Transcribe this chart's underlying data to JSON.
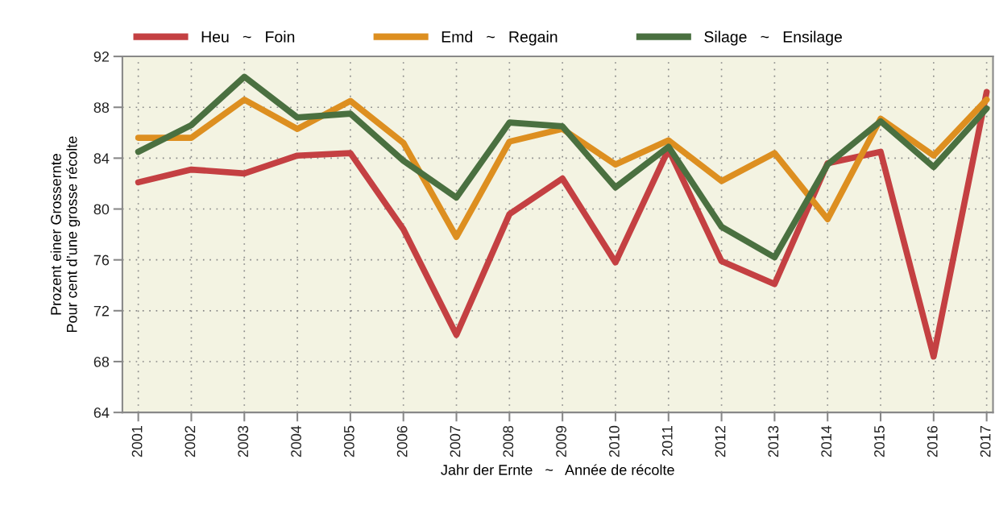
{
  "chart_data": {
    "type": "line",
    "categories": [
      "2001",
      "2002",
      "2003",
      "2004",
      "2005",
      "2006",
      "2007",
      "2008",
      "2009",
      "2010",
      "2011",
      "2012",
      "2013",
      "2014",
      "2015",
      "2016",
      "2017"
    ],
    "series": [
      {
        "name": "Heu   ~   Foin",
        "color": "#c44042",
        "values": [
          82.1,
          83.1,
          82.8,
          84.2,
          84.4,
          78.4,
          70.1,
          79.6,
          82.4,
          75.8,
          84.7,
          75.9,
          74.1,
          83.6,
          84.5,
          68.4,
          89.2
        ]
      },
      {
        "name": "Emd   ~   Regain",
        "color": "#dd8f20",
        "values": [
          85.6,
          85.6,
          88.6,
          86.3,
          88.5,
          85.2,
          77.8,
          85.3,
          86.3,
          83.5,
          85.4,
          82.2,
          84.4,
          79.2,
          87.1,
          84.2,
          88.6
        ]
      },
      {
        "name": "Silage   ~   Ensilage",
        "color": "#4a7040",
        "values": [
          84.5,
          86.6,
          90.4,
          87.2,
          87.5,
          83.8,
          80.9,
          86.8,
          86.5,
          81.7,
          84.9,
          78.6,
          76.2,
          83.5,
          86.9,
          83.3,
          87.9
        ]
      }
    ],
    "ylabel": "Prozent einer Grossernte\nPour cent d’une grosse récolte",
    "xlabel": "Jahr der Ernte   ~   Année de récolte",
    "ylim": [
      64,
      92
    ],
    "yticks": [
      64,
      68,
      72,
      76,
      80,
      84,
      88,
      92
    ],
    "grid": true,
    "legend": "top",
    "marker": "none",
    "line_style": "solid"
  }
}
